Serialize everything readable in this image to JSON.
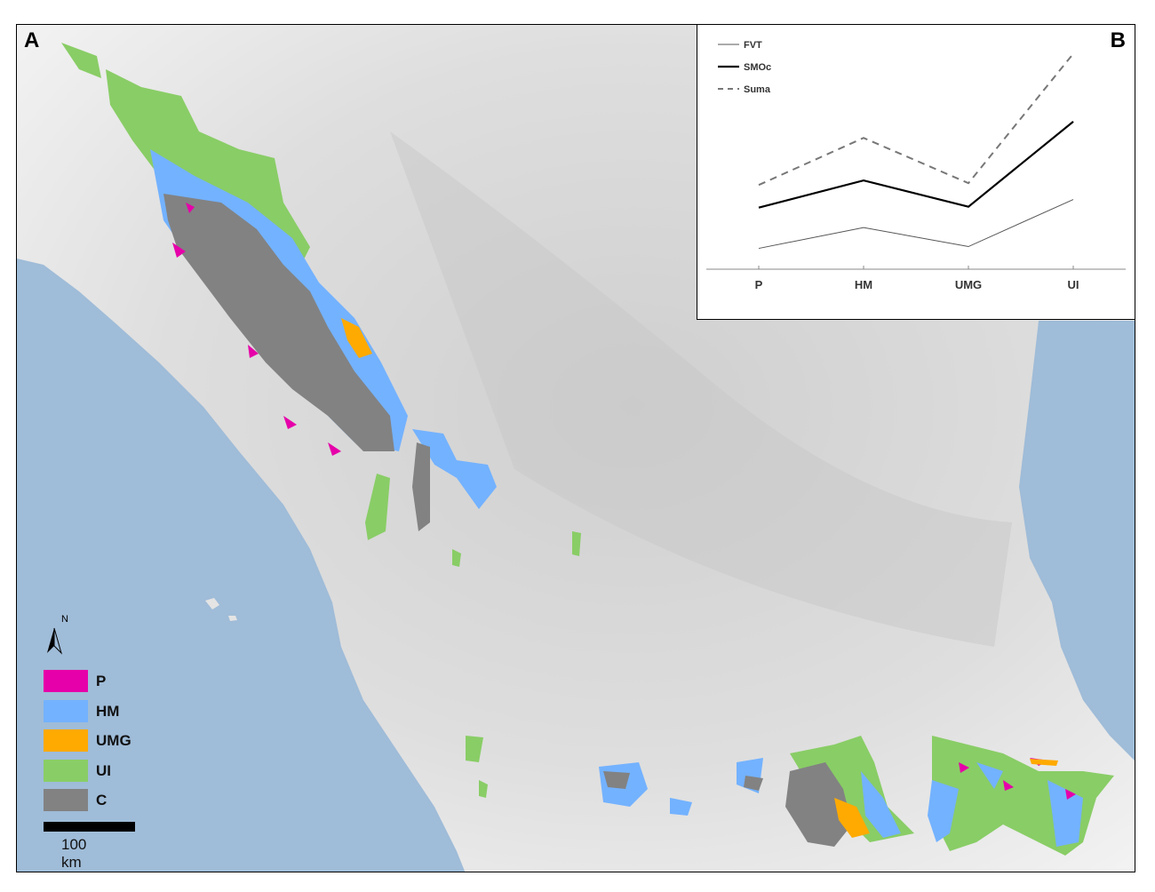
{
  "panels": {
    "a_label": "A",
    "b_label": "B"
  },
  "colors": {
    "P": "#e600a9",
    "HM": "#73b2ff",
    "UMG": "#ffaa00",
    "UI": "#89cd66",
    "C": "#828282",
    "ocean": "#9fbcd8",
    "land": "#d9d9d9"
  },
  "legend": {
    "north_label": "N",
    "items": [
      {
        "label": "P",
        "color": "#e600a9"
      },
      {
        "label": "HM",
        "color": "#73b2ff"
      },
      {
        "label": "UMG",
        "color": "#ffaa00"
      },
      {
        "label": "UI",
        "color": "#89cd66"
      },
      {
        "label": "C",
        "color": "#828282"
      }
    ],
    "scale_label": "100 km"
  },
  "chart_data": {
    "type": "line",
    "categories": [
      "P",
      "HM",
      "UMG",
      "UI"
    ],
    "series": [
      {
        "name": "FVT",
        "values": [
          23,
          46,
          25,
          77
        ],
        "style": "thin-solid",
        "color": "#555555"
      },
      {
        "name": "SMOc",
        "values": [
          68,
          98,
          69,
          163
        ],
        "style": "thick-solid",
        "color": "#000000"
      },
      {
        "name": "Suma",
        "values": [
          93,
          145,
          95,
          238
        ],
        "style": "dashed",
        "color": "#777777"
      }
    ],
    "ylim": [
      0,
      260
    ],
    "y_axis_shown": false,
    "grid": false,
    "legend_position": "top-left",
    "title": "",
    "xlabel": "",
    "ylabel": ""
  }
}
